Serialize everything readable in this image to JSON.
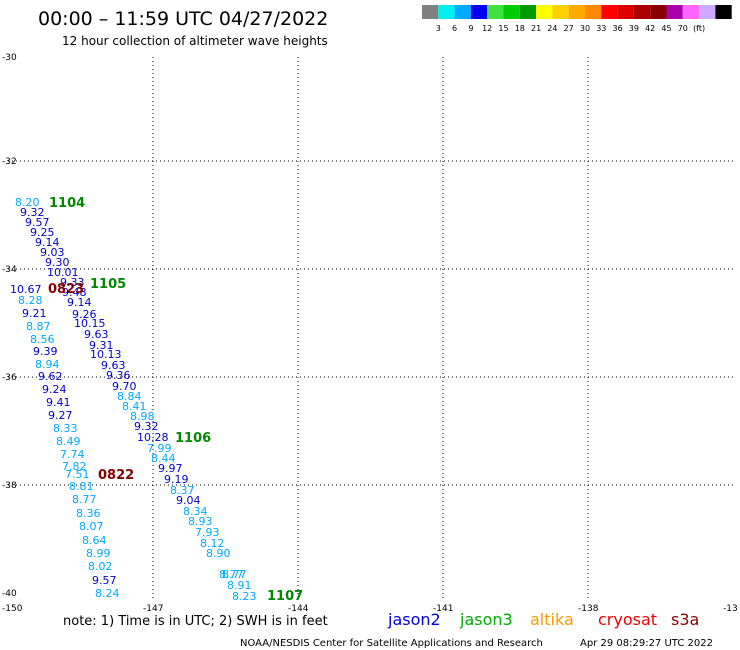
{
  "header": {
    "title": "00:00 – 11:59 UTC 04/27/2022",
    "subtitle": "12 hour collection of altimeter wave heights"
  },
  "legend": {
    "colors": [
      "#808080",
      "#00f0f0",
      "#00aaff",
      "#0000ee",
      "#40e040",
      "#00cc00",
      "#009900",
      "#ffff00",
      "#ffd000",
      "#ffaa00",
      "#ff8800",
      "#ff0000",
      "#dd0000",
      "#aa0000",
      "#880000",
      "#aa00aa",
      "#ff66ff",
      "#ccaaff",
      "#000000"
    ],
    "labels": [
      "3",
      "6",
      "9",
      "12",
      "15",
      "18",
      "21",
      "24",
      "27",
      "30",
      "33",
      "36",
      "39",
      "42",
      "45",
      "70",
      "(ft)"
    ]
  },
  "axes": {
    "lon_ticks": [
      "-150",
      "-147",
      "-144",
      "-141",
      "-138",
      "-13"
    ],
    "lat_ticks": [
      "-30",
      "-32",
      "-34",
      "-36",
      "-38",
      "-40"
    ]
  },
  "points": [
    {
      "v": "8.20",
      "c": "#00aaff"
    },
    {
      "v": "9.32",
      "c": "#0000cc"
    },
    {
      "v": "9.57",
      "c": "#0000cc"
    },
    {
      "v": "9.25",
      "c": "#0000cc"
    },
    {
      "v": "9.14",
      "c": "#0000cc"
    },
    {
      "v": "9.03",
      "c": "#0000cc"
    },
    {
      "v": "9.30",
      "c": "#0000cc"
    },
    {
      "v": "10.01",
      "c": "#0000cc"
    },
    {
      "v": "9.33",
      "c": "#0000cc"
    },
    {
      "v": "10.67",
      "c": "#0000cc"
    },
    {
      "v": "9.48",
      "c": "#0000cc"
    },
    {
      "v": "8.28",
      "c": "#00aaff"
    },
    {
      "v": "9.14",
      "c": "#0000cc"
    },
    {
      "v": "9.21",
      "c": "#0000cc"
    },
    {
      "v": "9.26",
      "c": "#0000cc"
    },
    {
      "v": "8.87",
      "c": "#00aaff"
    },
    {
      "v": "10.15",
      "c": "#0000cc"
    },
    {
      "v": "8.56",
      "c": "#00aaff"
    },
    {
      "v": "9.63",
      "c": "#0000cc"
    },
    {
      "v": "9.31",
      "c": "#0000cc"
    },
    {
      "v": "9.39",
      "c": "#0000cc"
    },
    {
      "v": "10.13",
      "c": "#0000cc"
    },
    {
      "v": "8.94",
      "c": "#00aaff"
    },
    {
      "v": "9.63",
      "c": "#0000cc"
    },
    {
      "v": "9.62",
      "c": "#0000cc"
    },
    {
      "v": "9.36",
      "c": "#0000cc"
    },
    {
      "v": "9.70",
      "c": "#0000cc"
    },
    {
      "v": "9.24",
      "c": "#0000cc"
    },
    {
      "v": "8.84",
      "c": "#00aaff"
    },
    {
      "v": "9.41",
      "c": "#0000cc"
    },
    {
      "v": "8.41",
      "c": "#00aaff"
    },
    {
      "v": "9.27",
      "c": "#0000cc"
    },
    {
      "v": "8.98",
      "c": "#00aaff"
    },
    {
      "v": "8.33",
      "c": "#00aaff"
    },
    {
      "v": "9.32",
      "c": "#0000cc"
    },
    {
      "v": "10.28",
      "c": "#0000cc"
    },
    {
      "v": "8.49",
      "c": "#00aaff"
    },
    {
      "v": "7.99",
      "c": "#00aaff"
    },
    {
      "v": "7.74",
      "c": "#00aaff"
    },
    {
      "v": "8.44",
      "c": "#00aaff"
    },
    {
      "v": "7.82",
      "c": "#00aaff"
    },
    {
      "v": "9.97",
      "c": "#0000cc"
    },
    {
      "v": "7.51",
      "c": "#00aaff"
    },
    {
      "v": "9.19",
      "c": "#0000cc"
    },
    {
      "v": "8.81",
      "c": "#00aaff"
    },
    {
      "v": "8.37",
      "c": "#00aaff"
    },
    {
      "v": "8.77",
      "c": "#00aaff"
    },
    {
      "v": "9.04",
      "c": "#0000cc"
    },
    {
      "v": "8.36",
      "c": "#00aaff"
    },
    {
      "v": "8.34",
      "c": "#00aaff"
    },
    {
      "v": "8.07",
      "c": "#00aaff"
    },
    {
      "v": "8.93",
      "c": "#00aaff"
    },
    {
      "v": "8.64",
      "c": "#00aaff"
    },
    {
      "v": "7.93",
      "c": "#00aaff"
    },
    {
      "v": "8.99",
      "c": "#00aaff"
    },
    {
      "v": "8.12",
      "c": "#00aaff"
    },
    {
      "v": "8.02",
      "c": "#00aaff"
    },
    {
      "v": "8.90",
      "c": "#00aaff"
    },
    {
      "v": "9.57",
      "c": "#0000cc"
    },
    {
      "v": "8.77",
      "c": "#00aaff"
    },
    {
      "v": "8.24",
      "c": "#00aaff"
    },
    {
      "v": "8.77",
      "c": "#00aaff"
    },
    {
      "v": "8.91",
      "c": "#00aaff"
    },
    {
      "v": "8.23",
      "c": "#00aaff"
    }
  ],
  "pass_times": [
    {
      "t": "1104",
      "c": "#008800"
    },
    {
      "t": "1105",
      "c": "#008800"
    },
    {
      "t": "0823",
      "c": "#880000"
    },
    {
      "t": "1106",
      "c": "#008800"
    },
    {
      "t": "0822",
      "c": "#880000"
    },
    {
      "t": "1107",
      "c": "#008800"
    }
  ],
  "footer": {
    "note": "note:  1) Time is in UTC;  2) SWH is in feet",
    "satellites": [
      {
        "name": "jason2",
        "color": "#0000dd"
      },
      {
        "name": "jason3",
        "color": "#00aa00"
      },
      {
        "name": "altika",
        "color": "#ff9900"
      },
      {
        "name": "cryosat",
        "color": "#ee0000"
      },
      {
        "name": "s3a",
        "color": "#880000"
      }
    ],
    "credit": "NOAA/NESDIS Center for Satellite Applications and Research",
    "timestamp": "Apr 29 08:29:27 UTC 2022"
  }
}
